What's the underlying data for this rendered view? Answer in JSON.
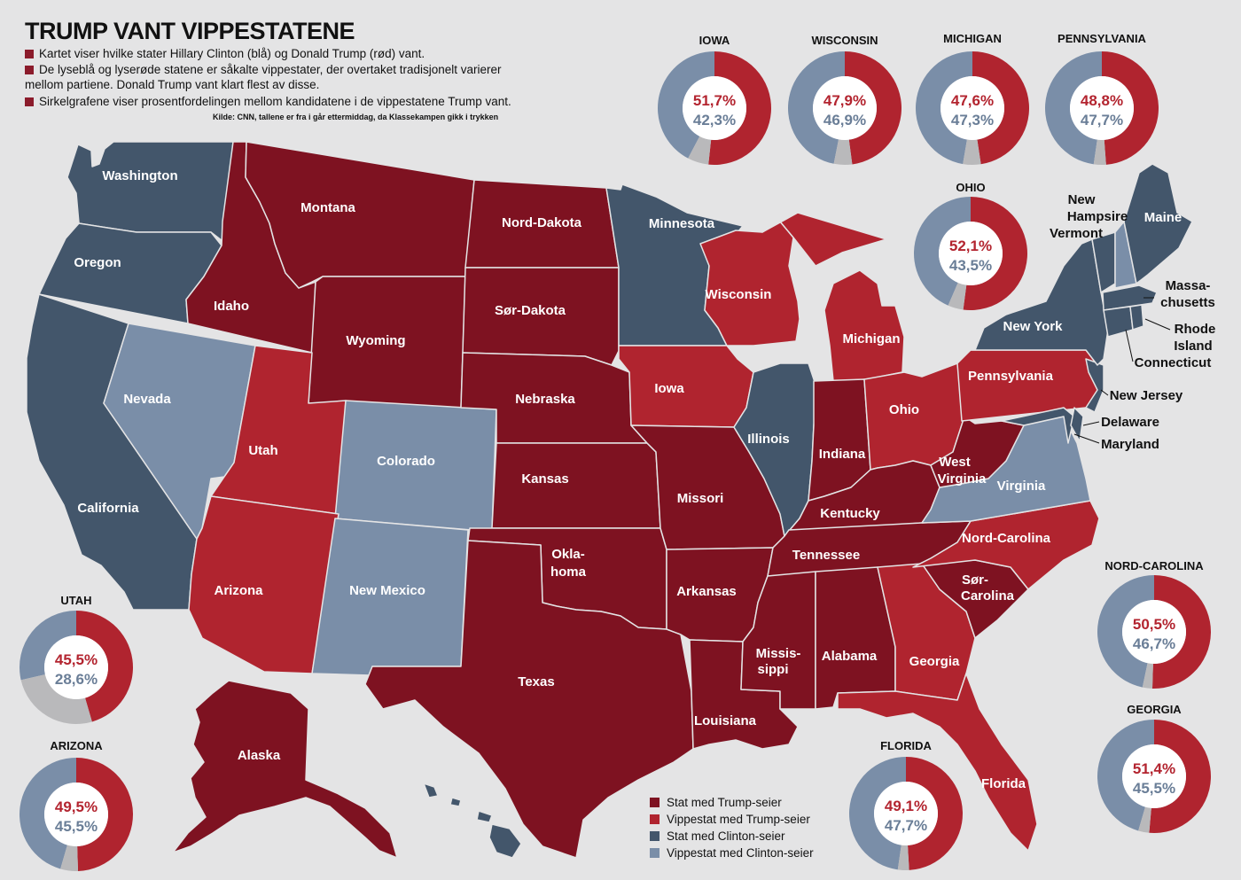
{
  "title": "TRUMP VANT VIPPESTATENE",
  "intro": {
    "bullets": [
      "Kartet viser hvilke stater Hillary Clinton (blå) og Donald Trump (rød) vant.",
      "De lyseblå og lyserøde statene er såkalte vippestater, der overtaket tradisjonelt varierer",
      "Sirkelgrafene viser prosentfordelingen mellom kandidatene i de vippestatene Trump vant."
    ],
    "bullet2_cont": "mellom partiene.  Donald Trump vant klart flest av disse.",
    "source": "Kilde: CNN, tallene er fra i går ettermiddag, da Klassekampen gikk i trykken"
  },
  "colors": {
    "trump": "#7e1221",
    "trump_swing": "#b0242f",
    "clinton": "#43566b",
    "clinton_swing": "#7a8ea8",
    "other": "#b9b9bb",
    "background": "#e4e4e5"
  },
  "states": {
    "washington": "Washington",
    "oregon": "Oregon",
    "california": "California",
    "nevada": "Nevada",
    "idaho": "Idaho",
    "montana": "Montana",
    "wyoming": "Wyoming",
    "utah": "Utah",
    "colorado": "Colorado",
    "arizona": "Arizona",
    "new_mexico": "New Mexico",
    "north_dakota": "Nord-Dakota",
    "south_dakota": "Sør-Dakota",
    "nebraska": "Nebraska",
    "kansas": "Kansas",
    "oklahoma_1": "Okla-",
    "oklahoma_2": "homa",
    "texas": "Texas",
    "minnesota": "Minnesota",
    "iowa": "Iowa",
    "missouri": "Missori",
    "arkansas": "Arkansas",
    "louisiana": "Louisiana",
    "wisconsin": "Wisconsin",
    "illinois": "Illinois",
    "michigan": "Michigan",
    "indiana": "Indiana",
    "ohio": "Ohio",
    "kentucky": "Kentucky",
    "tennessee": "Tennessee",
    "mississippi_1": "Missis-",
    "mississippi_2": "sippi",
    "alabama": "Alabama",
    "georgia": "Georgia",
    "florida": "Florida",
    "south_carolina_1": "Sør-",
    "south_carolina_2": "Carolina",
    "north_carolina": "Nord-Carolina",
    "virginia": "Virginia",
    "west_virginia_1": "West",
    "west_virginia_2": "Virginia",
    "pennsylvania": "Pennsylvania",
    "new_york": "New York",
    "maine": "Maine",
    "new_hampshire_1": "New",
    "new_hampshire_2": "Hampsire",
    "vermont": "Vermont",
    "massachusetts_1": "Massa-",
    "massachusetts_2": "chusetts",
    "rhode_island_1": "Rhode",
    "rhode_island_2": "Island",
    "connecticut": "Connecticut",
    "new_jersey": "New Jersey",
    "delaware": "Delaware",
    "maryland": "Maryland",
    "alaska": "Alaska"
  },
  "swing_results": [
    {
      "state": "IOWA",
      "trump": "51,7%",
      "clinton": "42,3%",
      "trump_share": 51.7,
      "clinton_share": 42.3
    },
    {
      "state": "WISCONSIN",
      "trump": "47,9%",
      "clinton": "46,9%",
      "trump_share": 47.9,
      "clinton_share": 46.9
    },
    {
      "state": "MICHIGAN",
      "trump": "47,6%",
      "clinton": "47,3%",
      "trump_share": 47.6,
      "clinton_share": 47.3
    },
    {
      "state": "PENNSYLVANIA",
      "trump": "48,8%",
      "clinton": "47,7%",
      "trump_share": 48.8,
      "clinton_share": 47.7
    },
    {
      "state": "OHIO",
      "trump": "52,1%",
      "clinton": "43,5%",
      "trump_share": 52.1,
      "clinton_share": 43.5
    },
    {
      "state": "NORD-CAROLINA",
      "trump": "50,5%",
      "clinton": "46,7%",
      "trump_share": 50.5,
      "clinton_share": 46.7
    },
    {
      "state": "GEORGIA",
      "trump": "51,4%",
      "clinton": "45,5%",
      "trump_share": 51.4,
      "clinton_share": 45.5
    },
    {
      "state": "UTAH",
      "trump": "45,5%",
      "clinton": "28,6%",
      "trump_share": 45.5,
      "clinton_share": 28.6
    },
    {
      "state": "ARIZONA",
      "trump": "49,5%",
      "clinton": "45,5%",
      "trump_share": 49.5,
      "clinton_share": 45.5
    },
    {
      "state": "FLORIDA",
      "trump": "49,1%",
      "clinton": "47,7%",
      "trump_share": 49.1,
      "clinton_share": 47.7
    }
  ],
  "legend": [
    {
      "label": "Stat med Trump-seier",
      "color": "#7e1221"
    },
    {
      "label": "Vippestat med Trump-seier",
      "color": "#b0242f"
    },
    {
      "label": "Stat med Clinton-seier",
      "color": "#43566b"
    },
    {
      "label": "Vippestat med Clinton-seier",
      "color": "#7a8ea8"
    }
  ]
}
